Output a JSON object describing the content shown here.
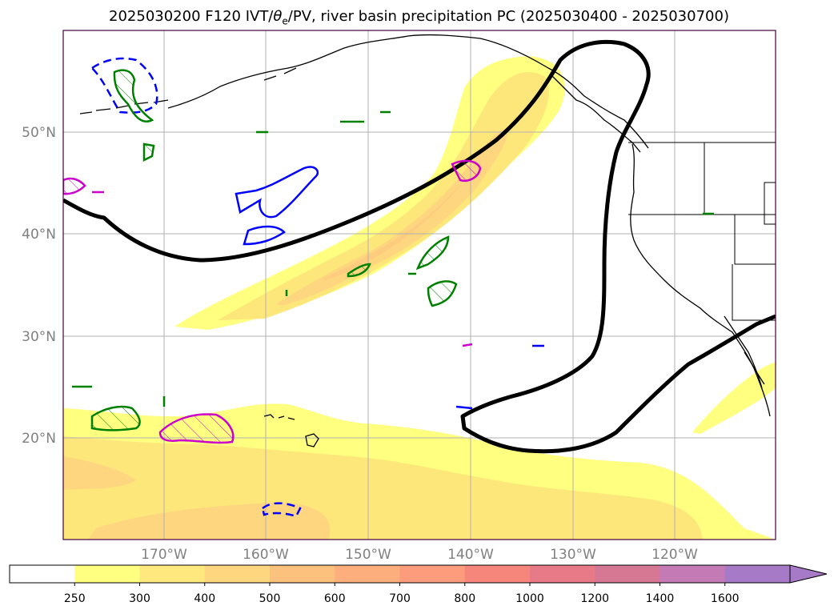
{
  "title": {
    "prefix": "2025030200 F120 IVT/",
    "theta": "θ",
    "theta_sub": "e",
    "suffix": "/PV, river basin precipitation PC (2025030400 - 2025030700)"
  },
  "map": {
    "lat_ticks": [
      "50°N",
      "40°N",
      "30°N",
      "20°N"
    ],
    "lon_ticks": [
      "170°W",
      "160°W",
      "150°W",
      "140°W",
      "130°W",
      "120°W"
    ],
    "colors": {
      "ivt_250": "#ffff80",
      "ivt_300": "#fee77a",
      "ivt_400": "#fdd67f",
      "land_coast": "#000000",
      "pc_contour": "#000000",
      "pv_low": "#0000ff",
      "pv_high": "#cc00cc",
      "theta_e": "#008000",
      "grid": "#b0b0b0"
    }
  },
  "colorbar": {
    "labels": [
      "250",
      "300",
      "400",
      "500",
      "600",
      "700",
      "800",
      "1000",
      "1200",
      "1400",
      "1600"
    ],
    "colors": [
      "#ffffff",
      "#ffff80",
      "#ffe97f",
      "#fed67f",
      "#fdc17e",
      "#fdae7d",
      "#fc9c7c",
      "#f6867b",
      "#e77a86",
      "#d67794",
      "#c37ab5",
      "#a77ac8"
    ]
  }
}
